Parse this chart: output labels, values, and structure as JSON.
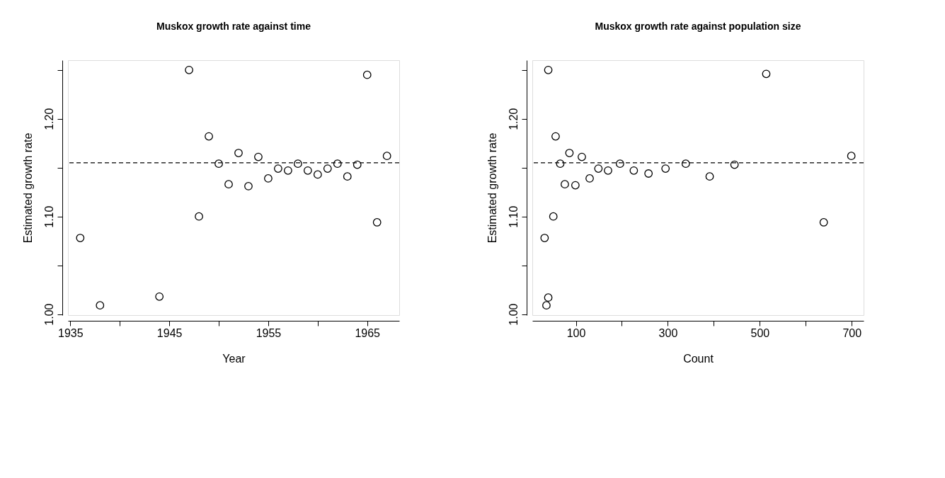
{
  "chart_data": [
    {
      "type": "scatter",
      "title": "Muskox growth rate against time",
      "xlabel": "Year",
      "ylabel": "Estimated growth rate",
      "x": [
        1936,
        1938,
        1944,
        1947,
        1948,
        1949,
        1950,
        1951,
        1952,
        1953,
        1954,
        1955,
        1956,
        1957,
        1958,
        1959,
        1960,
        1961,
        1962,
        1963,
        1964,
        1965,
        1966,
        1967
      ],
      "series": [
        {
          "color": "#000000",
          "values": [
            1.078,
            1.009,
            1.018,
            1.25,
            1.1,
            1.182,
            1.154,
            1.133,
            1.165,
            1.131,
            1.161,
            1.139,
            1.149,
            1.147,
            1.154,
            1.147,
            1.143,
            1.149,
            1.154,
            1.141,
            1.153,
            1.245,
            1.094,
            1.162
          ]
        }
      ],
      "xlim": [
        1934.76,
        1968.24
      ],
      "ylim": [
        0.999,
        1.26
      ],
      "xticks": [
        1935,
        {
          "value": 1940,
          "label": null
        },
        1945,
        {
          "value": 1950,
          "label": null
        },
        1955,
        {
          "value": 1960,
          "label": null
        },
        1965
      ],
      "yticks": [
        {
          "value": 1.0,
          "label": "1.00"
        },
        {
          "value": 1.05,
          "label": null
        },
        {
          "value": 1.1,
          "label": "1.10"
        },
        {
          "value": 1.15,
          "label": null
        },
        {
          "value": 1.2,
          "label": "1.20"
        },
        {
          "value": 1.25,
          "label": null
        }
      ],
      "ref_lines": [
        {
          "axis": "y",
          "value": 1.155,
          "line_style": "dashed",
          "color": "#000000"
        }
      ],
      "marker": "circle",
      "grid": false,
      "legend": false
    },
    {
      "type": "scatter",
      "title": "Muskox growth rate against population size",
      "xlabel": "Count",
      "ylabel": "Estimated growth rate",
      "x": [
        32,
        36,
        40,
        40,
        51,
        56,
        66,
        76,
        86,
        99,
        113,
        130,
        149,
        170,
        196,
        226,
        258,
        295,
        339,
        391,
        445,
        514,
        639,
        699
      ],
      "series": [
        {
          "color": "#000000",
          "values": [
            1.078,
            1.009,
            1.017,
            1.25,
            1.1,
            1.182,
            1.154,
            1.133,
            1.165,
            1.132,
            1.161,
            1.139,
            1.149,
            1.147,
            1.154,
            1.147,
            1.144,
            1.149,
            1.154,
            1.141,
            1.153,
            1.246,
            1.094,
            1.162
          ]
        }
      ],
      "xlim": [
        5.3,
        725.7
      ],
      "ylim": [
        0.999,
        1.26
      ],
      "xticks": [
        100,
        {
          "value": 200,
          "label": null
        },
        300,
        {
          "value": 400,
          "label": null
        },
        500,
        {
          "value": 600,
          "label": null
        },
        700
      ],
      "yticks": [
        {
          "value": 1.0,
          "label": "1.00"
        },
        {
          "value": 1.05,
          "label": null
        },
        {
          "value": 1.1,
          "label": "1.10"
        },
        {
          "value": 1.15,
          "label": null
        },
        {
          "value": 1.2,
          "label": "1.20"
        },
        {
          "value": 1.25,
          "label": null
        }
      ],
      "ref_lines": [
        {
          "axis": "y",
          "value": 1.155,
          "line_style": "dashed",
          "color": "#000000"
        }
      ],
      "marker": "circle",
      "grid": false,
      "legend": false
    }
  ]
}
